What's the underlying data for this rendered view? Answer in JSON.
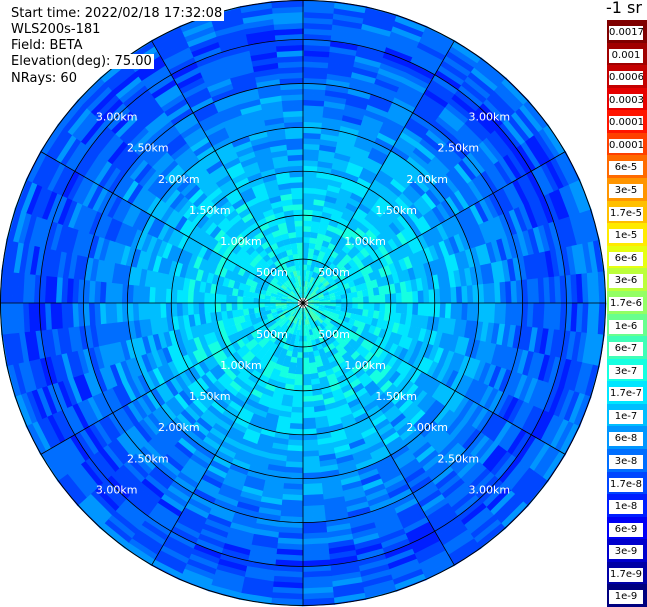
{
  "header": {
    "start_time": "Start time: 2022/02/18 17:32:08",
    "instrument": "WLS200s-181",
    "field": "Field: BETA",
    "elevation": "Elevation(deg): 75.00",
    "nrays": "NRays: 60"
  },
  "colorbar": {
    "unit": "-1 sr",
    "labels": [
      "0.0017",
      "0.001",
      "0.0006",
      "0.0003",
      "0.00017",
      "0.0001",
      "6e-5",
      "3e-5",
      "1.7e-5",
      "1e-5",
      "6e-6",
      "3e-6",
      "1.7e-6",
      "1e-6",
      "6e-7",
      "3e-7",
      "1.7e-7",
      "1e-7",
      "6e-8",
      "3e-8",
      "1.7e-8",
      "1e-8",
      "6e-9",
      "3e-9",
      "1.7e-9",
      "1e-9"
    ],
    "colors": [
      "#7f0000",
      "#a00000",
      "#c40000",
      "#e60000",
      "#ff1500",
      "#ff4000",
      "#ff6a00",
      "#ff9500",
      "#ffbf00",
      "#ffea00",
      "#e6ff11",
      "#bcff3b",
      "#93ff64",
      "#69ff8e",
      "#3fffb7",
      "#15ffe1",
      "#00e6ff",
      "#00beff",
      "#0096ff",
      "#006eff",
      "#0046ff",
      "#001eff",
      "#0000f5",
      "#0000cd",
      "#0000a6",
      "#00007f"
    ]
  },
  "chart_data": {
    "type": "heatmap",
    "projection": "polar (PPI)",
    "quantity": "BETA",
    "unit": "-1 sr",
    "rays": 60,
    "range_rings": [
      "500m",
      "1.00km",
      "1.50km",
      "2.00km",
      "2.50km",
      "3.00km"
    ],
    "range_label_text": {
      "500m": "500m",
      "1.00km": "1.00km",
      "1.50km": "1.50km",
      "2.00km": "2.00km",
      "2.50km": "2.50km",
      "3.00km": "3.00km"
    },
    "rings_km": [
      0.5,
      1.0,
      1.5,
      2.0,
      2.5,
      3.0
    ],
    "max_range_km": 3.45,
    "spokes": 12,
    "range_profile": [
      {
        "range_km": 0.1,
        "level": 15
      },
      {
        "range_km": 0.5,
        "level": 16
      },
      {
        "range_km": 1.0,
        "level": 16
      },
      {
        "range_km": 1.5,
        "level": 17
      },
      {
        "range_km": 2.0,
        "level": 18
      },
      {
        "range_km": 2.5,
        "level": 19
      },
      {
        "range_km": 3.0,
        "level": 20
      },
      {
        "range_km": 3.4,
        "level": 19
      }
    ],
    "colorscale": "log, 1e-9 to 0.0017",
    "grid": true
  }
}
